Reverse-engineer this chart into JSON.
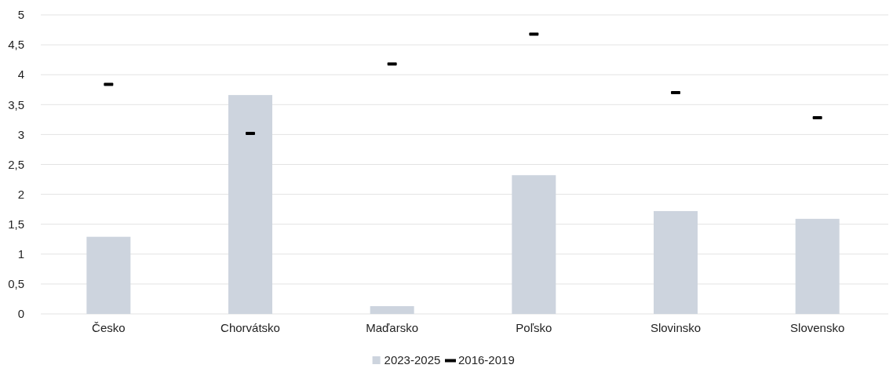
{
  "chart_data": {
    "type": "bar",
    "categories": [
      "Česko",
      "Chorvátsko",
      "Maďarsko",
      "Poľsko",
      "Slovinsko",
      "Slovensko"
    ],
    "series": [
      {
        "name": "2023-2025",
        "color": "#cdd4de",
        "values": [
          1.29,
          3.66,
          0.13,
          2.32,
          1.72,
          1.59
        ]
      },
      {
        "name": "2016-2019",
        "type": "scatter",
        "color": "#000000",
        "x": [
          "Česko",
          "Chorvátsko",
          "Maďarsko",
          "Poľsko",
          "Slovinsko",
          "Slovensko"
        ],
        "values": [
          3.84,
          3.02,
          4.18,
          4.68,
          3.7,
          3.28
        ]
      }
    ],
    "ylim": [
      0,
      5
    ],
    "yticks": [
      0,
      {
        "value": 0.5,
        "label": "0,5"
      },
      1,
      {
        "value": 1.5,
        "label": "1,5"
      },
      2,
      {
        "value": 2.5,
        "label": "2,5"
      },
      3,
      {
        "value": 3.5,
        "label": "3,5"
      },
      4,
      {
        "value": 4.5,
        "label": "4,5"
      },
      5
    ],
    "grid": "y",
    "legend": "bottom"
  }
}
